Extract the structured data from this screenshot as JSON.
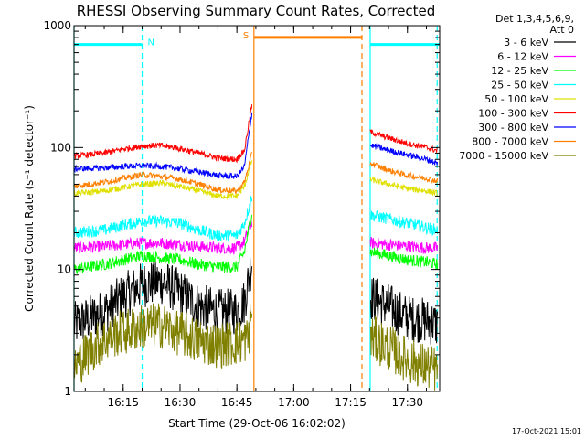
{
  "chart_data": {
    "type": "line",
    "title": "RHESSI Observing Summary Count Rates, Corrected",
    "xlabel": "Start Time (29-Oct-06 16:02:02)",
    "ylabel": "Corrected Count Rate (s⁻¹ detector⁻¹)",
    "yscale": "log",
    "xlim": [
      "16:02:02",
      "17:38:30"
    ],
    "ylim": [
      1,
      1000
    ],
    "x_ticks": [
      "16:15",
      "16:30",
      "16:45",
      "17:00",
      "17:15",
      "17:30"
    ],
    "y_ticks": [
      "1",
      "10",
      "100",
      "1000"
    ],
    "legend_header": [
      "Det 1,3,4,5,6,9,",
      "Att 0"
    ],
    "legend_position": "right",
    "timestamp": "17-Oct-2021 15:01",
    "flags": [
      {
        "label": "N",
        "color": "#00ffff",
        "segments": [
          [
            "16:02:02",
            "16:20:00"
          ],
          [
            "17:20:10",
            "17:38:30"
          ]
        ],
        "level": 700
      },
      {
        "label": "S",
        "color": "#ff8000",
        "segments": [
          [
            "16:49:30",
            "17:18:00"
          ]
        ],
        "level": 800
      }
    ],
    "markers": [
      {
        "time": "16:02:02",
        "color": "#00ffff",
        "style": "solid"
      },
      {
        "time": "16:20:00",
        "color": "#00ffff",
        "style": "dashed"
      },
      {
        "time": "16:49:30",
        "color": "#ff8000",
        "style": "solid"
      },
      {
        "time": "17:18:00",
        "color": "#ff8000",
        "style": "dashed"
      },
      {
        "time": "17:20:10",
        "color": "#00ffff",
        "style": "solid"
      },
      {
        "time": "17:37:50",
        "color": "#00ffff",
        "style": "dashed"
      }
    ],
    "data_gap": [
      "16:50:00",
      "17:20:10"
    ],
    "series": [
      {
        "name": "3 - 6 keV",
        "color": "#000000",
        "x": [
          "16:02",
          "16:10",
          "16:15",
          "16:20",
          "16:25",
          "16:30",
          "16:35",
          "16:40",
          "16:45",
          "16:47",
          "16:49",
          "17:20",
          "17:25",
          "17:30",
          "17:35",
          "17:38"
        ],
        "y": [
          3.5,
          4.5,
          6,
          7.5,
          8,
          6.5,
          5,
          4.5,
          4.5,
          5.5,
          12,
          6,
          5,
          4,
          3.8,
          3.5
        ]
      },
      {
        "name": "6 - 12 keV",
        "color": "#ff00ff",
        "x": [
          "16:02",
          "16:10",
          "16:15",
          "16:20",
          "16:25",
          "16:30",
          "16:35",
          "16:40",
          "16:45",
          "16:47",
          "16:49",
          "17:20",
          "17:25",
          "17:30",
          "17:35",
          "17:38"
        ],
        "y": [
          15,
          15.5,
          16,
          16.5,
          16.5,
          16,
          15.5,
          15,
          15,
          17,
          25,
          16.5,
          16,
          15.5,
          15,
          15
        ]
      },
      {
        "name": "12 - 25 keV",
        "color": "#00ff00",
        "x": [
          "16:02",
          "16:10",
          "16:15",
          "16:20",
          "16:25",
          "16:30",
          "16:35",
          "16:40",
          "16:45",
          "16:47",
          "16:49",
          "17:20",
          "17:25",
          "17:30",
          "17:35",
          "17:38"
        ],
        "y": [
          10,
          11,
          12,
          13,
          12.5,
          12,
          11,
          10.5,
          10.5,
          14,
          30,
          14,
          13,
          12,
          11.5,
          11
        ]
      },
      {
        "name": "25 - 50 keV",
        "color": "#00ffff",
        "x": [
          "16:02",
          "16:10",
          "16:15",
          "16:20",
          "16:25",
          "16:30",
          "16:35",
          "16:40",
          "16:45",
          "16:47",
          "16:49",
          "17:20",
          "17:25",
          "17:30",
          "17:35",
          "17:38"
        ],
        "y": [
          20,
          21,
          23,
          25,
          25,
          24,
          21,
          19,
          19,
          24,
          40,
          28,
          26,
          24,
          22,
          21
        ]
      },
      {
        "name": "50 - 100 keV",
        "color": "#e0e000",
        "x": [
          "16:02",
          "16:10",
          "16:15",
          "16:20",
          "16:25",
          "16:30",
          "16:35",
          "16:40",
          "16:45",
          "16:47",
          "16:49",
          "17:20",
          "17:25",
          "17:30",
          "17:35",
          "17:38"
        ],
        "y": [
          42,
          44,
          47,
          50,
          51,
          48,
          44,
          40,
          40,
          48,
          80,
          55,
          50,
          46,
          44,
          42
        ]
      },
      {
        "name": "100 - 300 keV",
        "color": "#ff0000",
        "x": [
          "16:02",
          "16:10",
          "16:15",
          "16:20",
          "16:25",
          "16:30",
          "16:35",
          "16:40",
          "16:45",
          "16:47",
          "16:49",
          "17:20",
          "17:25",
          "17:30",
          "17:35",
          "17:38"
        ],
        "y": [
          85,
          90,
          97,
          103,
          104,
          98,
          90,
          82,
          80,
          95,
          230,
          135,
          120,
          108,
          100,
          94
        ]
      },
      {
        "name": "300 - 800 keV",
        "color": "#0000ff",
        "x": [
          "16:02",
          "16:10",
          "16:15",
          "16:20",
          "16:25",
          "16:30",
          "16:35",
          "16:40",
          "16:45",
          "16:47",
          "16:49",
          "17:20",
          "17:25",
          "17:30",
          "17:35",
          "17:38"
        ],
        "y": [
          67,
          68,
          70,
          71,
          70,
          67,
          63,
          59,
          58,
          70,
          200,
          105,
          95,
          87,
          80,
          74
        ]
      },
      {
        "name": "800 - 7000 keV",
        "color": "#ff8000",
        "x": [
          "16:02",
          "16:10",
          "16:15",
          "16:20",
          "16:25",
          "16:30",
          "16:35",
          "16:40",
          "16:45",
          "16:47",
          "16:49",
          "17:20",
          "17:25",
          "17:30",
          "17:35",
          "17:38"
        ],
        "y": [
          48,
          52,
          56,
          60,
          58,
          55,
          50,
          45,
          44,
          52,
          90,
          75,
          65,
          59,
          56,
          53
        ]
      },
      {
        "name": "7000 - 15000 keV",
        "color": "#808000",
        "x": [
          "16:02",
          "16:08",
          "16:12",
          "16:16",
          "16:20",
          "16:25",
          "16:30",
          "16:35",
          "16:40",
          "16:45",
          "16:48",
          "16:49",
          "17:20",
          "17:25",
          "17:30",
          "17:35",
          "17:38"
        ],
        "y": [
          1.6,
          2.4,
          2.9,
          3.1,
          3.4,
          3.5,
          3.0,
          2.6,
          2.4,
          2.5,
          2.7,
          5.0,
          2.8,
          2.3,
          1.8,
          1.6,
          1.5
        ]
      }
    ]
  }
}
